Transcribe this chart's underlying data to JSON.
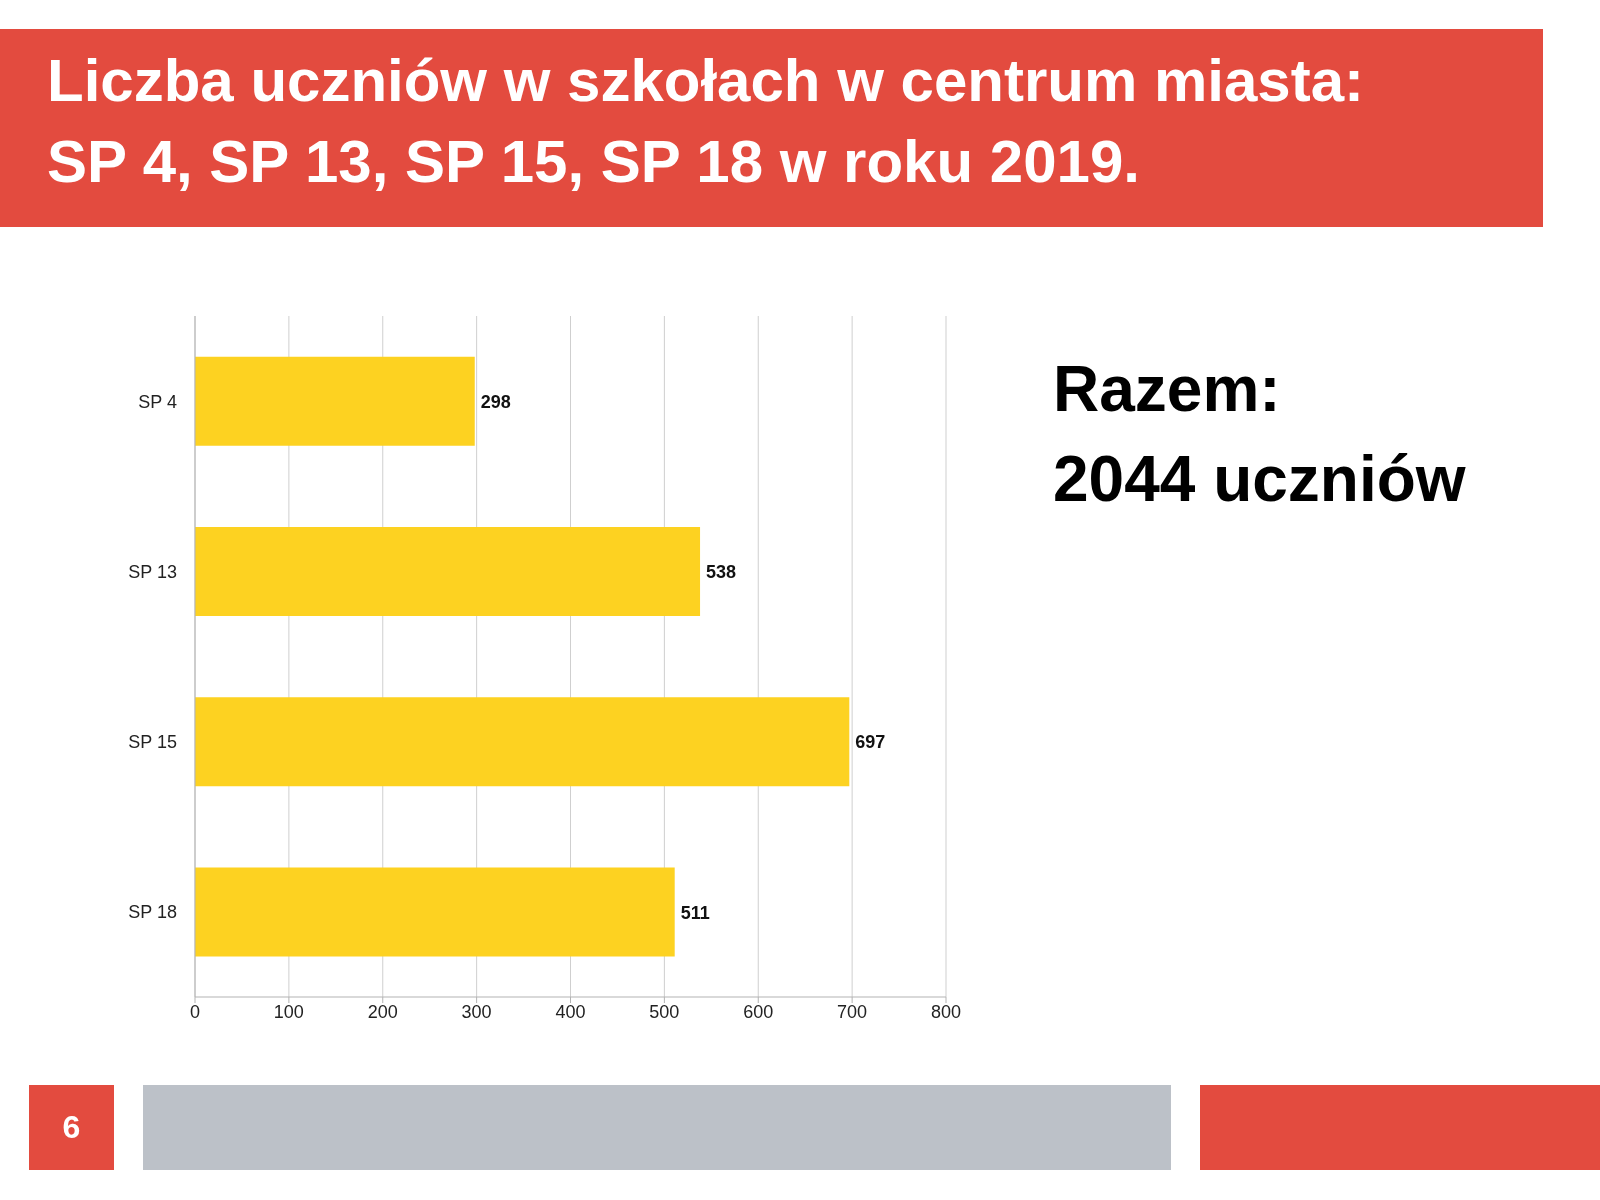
{
  "chart_data": {
    "type": "bar",
    "orientation": "horizontal",
    "title": "Liczba uczniów w szkołach w centrum miasta: SP 4, SP 13, SP 15, SP 18 w roku 2019.",
    "categories": [
      "SP 4",
      "SP 13",
      "SP 15",
      "SP 18"
    ],
    "values": [
      298,
      538,
      697,
      511
    ],
    "color": "#fdd221",
    "xlim": [
      0,
      800
    ],
    "xticks": [
      0,
      100,
      200,
      300,
      400,
      500,
      600,
      700,
      800
    ],
    "grid": "x",
    "data_labels": true,
    "annotations": [
      "Razem:",
      "2044 uczniów",
      "6"
    ]
  }
}
